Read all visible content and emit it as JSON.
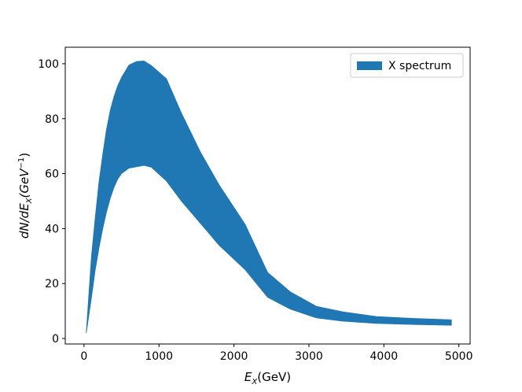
{
  "chart_data": {
    "type": "area",
    "xlabel_main": "E",
    "xlabel_sub": "X",
    "xlabel_unit": "(GeV)",
    "ylabel_prefix": "dN/dE",
    "ylabel_sub": "X",
    "ylabel_unit_open": "(GeV",
    "ylabel_sup": "−1",
    "ylabel_unit_close": ")",
    "xlim": [
      -250,
      5150
    ],
    "ylim": [
      -2,
      106
    ],
    "xticks": [
      0,
      1000,
      2000,
      3000,
      4000,
      5000
    ],
    "yticks": [
      0,
      20,
      40,
      60,
      80,
      100
    ],
    "legend": {
      "position": "top-right",
      "entries": [
        "X spectrum"
      ]
    },
    "grid": false,
    "series": [
      {
        "name": "X spectrum",
        "color": "#1f77b4",
        "x": [
          30,
          100,
          150,
          200,
          250,
          300,
          350,
          400,
          450,
          500,
          600,
          700,
          800,
          900,
          1100,
          1300,
          1550,
          1800,
          2150,
          2450,
          2750,
          3100,
          3450,
          3900,
          4400,
          4900
        ],
        "upper": [
          2,
          30,
          44,
          57,
          67,
          76,
          83,
          88,
          92,
          95,
          99.5,
          100.8,
          101,
          99.3,
          94.5,
          82,
          68,
          56,
          41.5,
          24,
          17,
          11.7,
          9.7,
          8,
          7.3,
          6.8
        ],
        "lower": [
          2,
          15,
          25,
          33,
          40,
          46,
          51,
          55,
          58,
          60,
          62,
          62.5,
          63,
          62.3,
          57.3,
          50,
          42,
          34,
          25,
          15,
          10.7,
          7.5,
          6.3,
          5.5,
          5.1,
          4.8
        ]
      }
    ]
  }
}
